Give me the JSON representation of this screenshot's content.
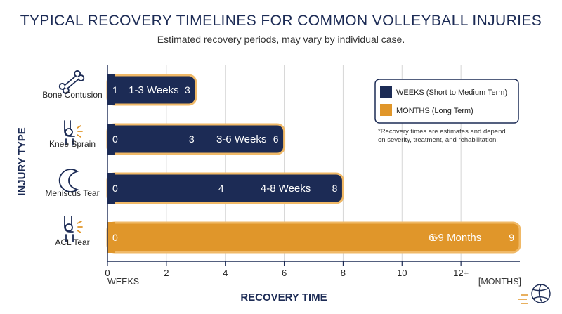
{
  "header": {
    "title": "TYPICAL RECOVERY TIMELINES FOR COMMON VOLLEYBALL INJURIES",
    "subtitle": "Estimated recovery periods, may vary by individual case."
  },
  "colors": {
    "weeks": "#1c2b55",
    "months": "#e0962a",
    "grid": "#d6d6d6",
    "text": "#1c2b55"
  },
  "chart_data": {
    "type": "bar",
    "orientation": "horizontal",
    "ylabel": "INJURY TYPE",
    "xlabel": "RECOVERY TIME",
    "x_unit_left": "WEEKS",
    "x_unit_right": "[MONTHS]",
    "xlim": [
      0,
      14
    ],
    "x_ticks": [
      {
        "value": 0,
        "label": "0"
      },
      {
        "value": 2,
        "label": "2"
      },
      {
        "value": 4,
        "label": "4"
      },
      {
        "value": 6,
        "label": "6"
      },
      {
        "value": 8,
        "label": "8"
      },
      {
        "value": 10,
        "label": "10"
      },
      {
        "value": 12,
        "label": "12+"
      }
    ],
    "grid": "vertical",
    "legend_position": "top-right",
    "legend": [
      {
        "label": "WEEKS (Short to Medium Term)",
        "series": "weeks"
      },
      {
        "label": "MONTHS (Long Term)",
        "series": "months"
      }
    ],
    "note": "*Recovery times are estimates and depend on severity, treatment, and rehabilitation.",
    "bars": [
      {
        "category": "Bone Contusion",
        "icon": "bone-icon",
        "series": "weeks",
        "start": 0,
        "end": 3,
        "range_label": "1-3 Weeks",
        "start_label": "1",
        "mid_label": "",
        "mid_value": null,
        "end_label": "3"
      },
      {
        "category": "Knee Sprain",
        "icon": "knee-sprain-icon",
        "series": "weeks",
        "start": 0,
        "end": 6,
        "range_label": "3-6 Weeks",
        "start_label": "0",
        "mid_label": "3",
        "mid_value": 3,
        "end_label": "6"
      },
      {
        "category": "Meniscus Tear",
        "icon": "meniscus-icon",
        "series": "weeks",
        "start": 0,
        "end": 8,
        "range_label": "4-8 Weeks",
        "start_label": "0",
        "mid_label": "4",
        "mid_value": 4,
        "end_label": "8"
      },
      {
        "category": "ACL Tear",
        "icon": "acl-knee-icon",
        "series": "months",
        "start": 0,
        "end": 14,
        "range_label": "6-9 Months",
        "start_label": "0",
        "mid_label": "6",
        "mid_value": 9,
        "end_label": "9"
      }
    ]
  }
}
